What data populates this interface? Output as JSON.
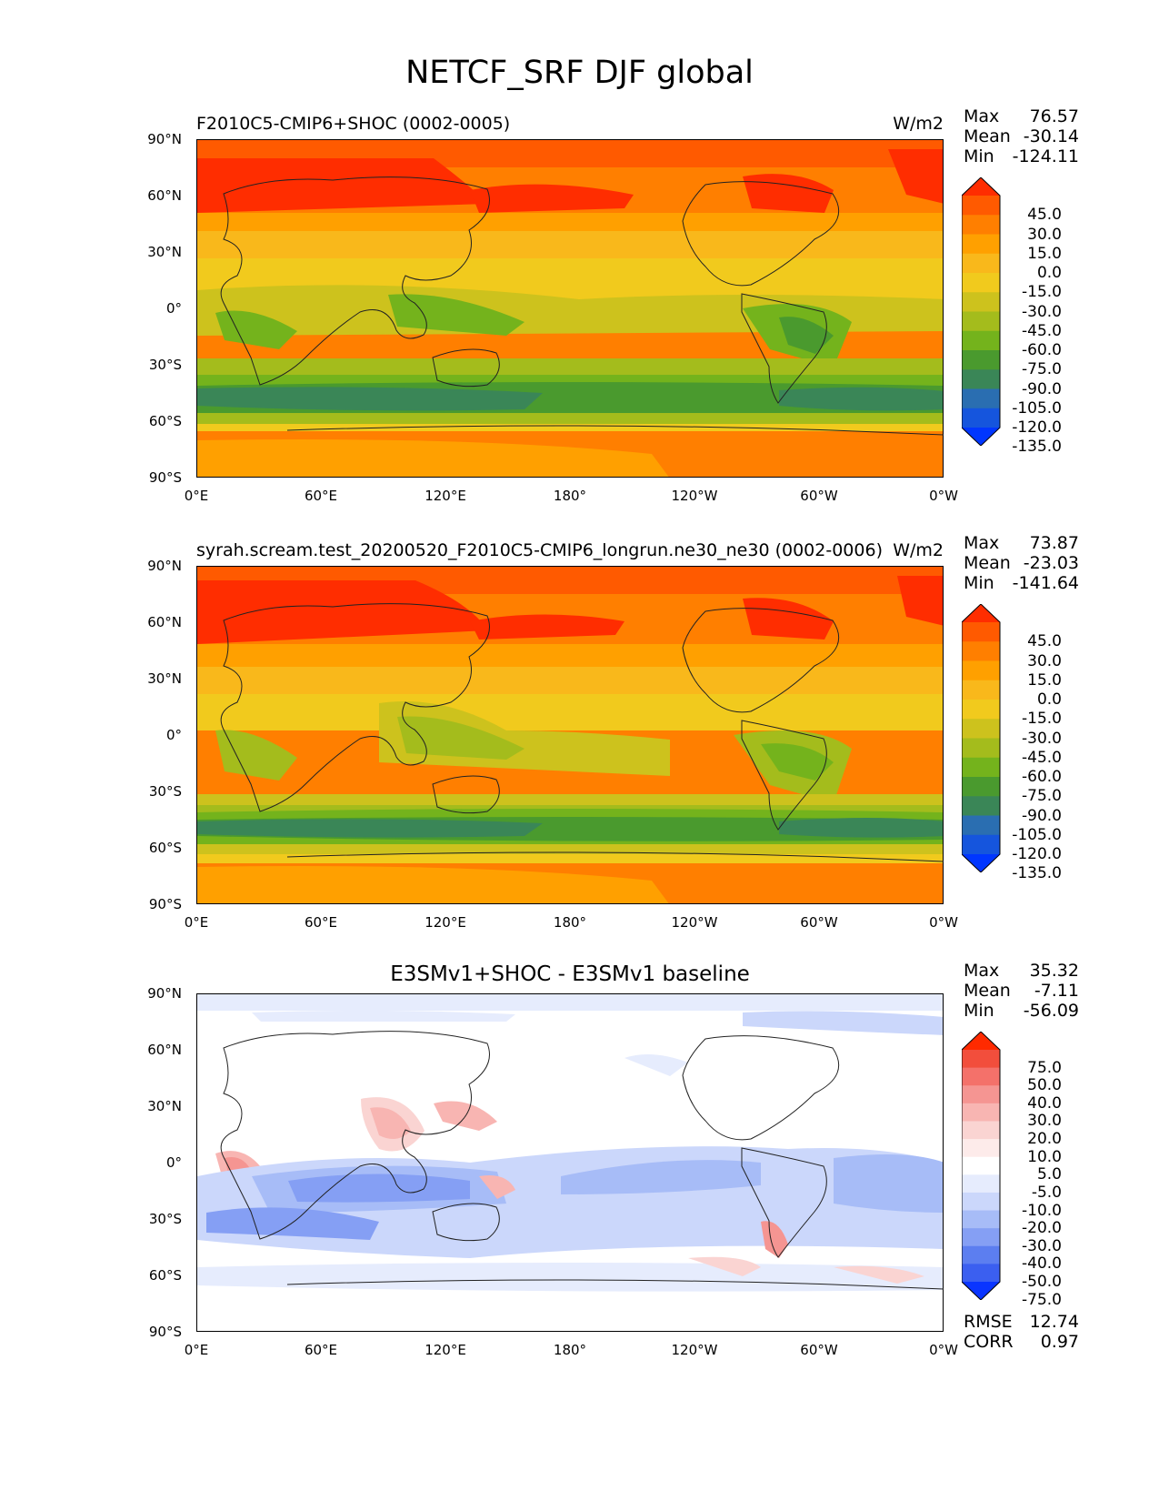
{
  "title": "NETCF_SRF DJF global",
  "x_ticks": [
    "0°E",
    "60°E",
    "120°E",
    "180°",
    "120°W",
    "60°W",
    "0°W"
  ],
  "y_ticks": [
    "90°N",
    "60°N",
    "30°N",
    "0°",
    "30°S",
    "60°S",
    "90°S"
  ],
  "panels": [
    {
      "title_left": "F2010C5-CMIP6+SHOC (0002-0005)",
      "title_right": "W/m2",
      "title_center": "",
      "stats": {
        "max_label": "Max",
        "max": "76.57",
        "mean_label": "Mean",
        "mean": "-30.14",
        "min_label": "Min",
        "min": "-124.11"
      },
      "colorbar_levels": [
        "45.0",
        "30.0",
        "15.0",
        "0.0",
        "-15.0",
        "-30.0",
        "-45.0",
        "-60.0",
        "-75.0",
        "-90.0",
        "-105.0",
        "-120.0",
        "-135.0"
      ],
      "colorbar_colors": [
        "#ff2d00",
        "#ff5a00",
        "#ff7f00",
        "#ffa000",
        "#f9b81b",
        "#f1ca1d",
        "#cdc21d",
        "#a4bc1c",
        "#74b31c",
        "#4a9a2e",
        "#3a8657",
        "#2a6eb1",
        "#1555dd",
        "#0036ff"
      ]
    },
    {
      "title_left": "syrah.scream.test_20200520_F2010C5-CMIP6_longrun.ne30_ne30 (0002-0006)",
      "title_right": "W/m2",
      "title_center": "",
      "stats": {
        "max_label": "Max",
        "max": "73.87",
        "mean_label": "Mean",
        "mean": "-23.03",
        "min_label": "Min",
        "min": "-141.64"
      },
      "colorbar_levels": [
        "45.0",
        "30.0",
        "15.0",
        "0.0",
        "-15.0",
        "-30.0",
        "-45.0",
        "-60.0",
        "-75.0",
        "-90.0",
        "-105.0",
        "-120.0",
        "-135.0"
      ],
      "colorbar_colors": [
        "#ff2d00",
        "#ff5a00",
        "#ff7f00",
        "#ffa000",
        "#f9b81b",
        "#f1ca1d",
        "#cdc21d",
        "#a4bc1c",
        "#74b31c",
        "#4a9a2e",
        "#3a8657",
        "#2a6eb1",
        "#1555dd",
        "#0036ff"
      ]
    },
    {
      "title_left": "",
      "title_right": "",
      "title_center": "E3SMv1+SHOC - E3SMv1 baseline",
      "stats": {
        "max_label": "Max",
        "max": "35.32",
        "mean_label": "Mean",
        "mean": "-7.11",
        "min_label": "Min",
        "min": "-56.09"
      },
      "colorbar_levels": [
        "75.0",
        "50.0",
        "40.0",
        "30.0",
        "20.0",
        "10.0",
        "5.0",
        "-5.0",
        "-10.0",
        "-20.0",
        "-30.0",
        "-40.0",
        "-50.0",
        "-75.0"
      ],
      "colorbar_colors": [
        "#ff2a00",
        "#f24e3c",
        "#f4716a",
        "#f59592",
        "#f8b5b2",
        "#fad4d2",
        "#fdebea",
        "#ffffff",
        "#e6ecfd",
        "#cbd7fb",
        "#a7bcf7",
        "#859ff4",
        "#5c7ef0",
        "#3b5ff0",
        "#0a35ff"
      ],
      "rmse_label": "RMSE",
      "rmse": "12.74",
      "corr_label": "CORR",
      "corr": "0.97"
    }
  ]
}
